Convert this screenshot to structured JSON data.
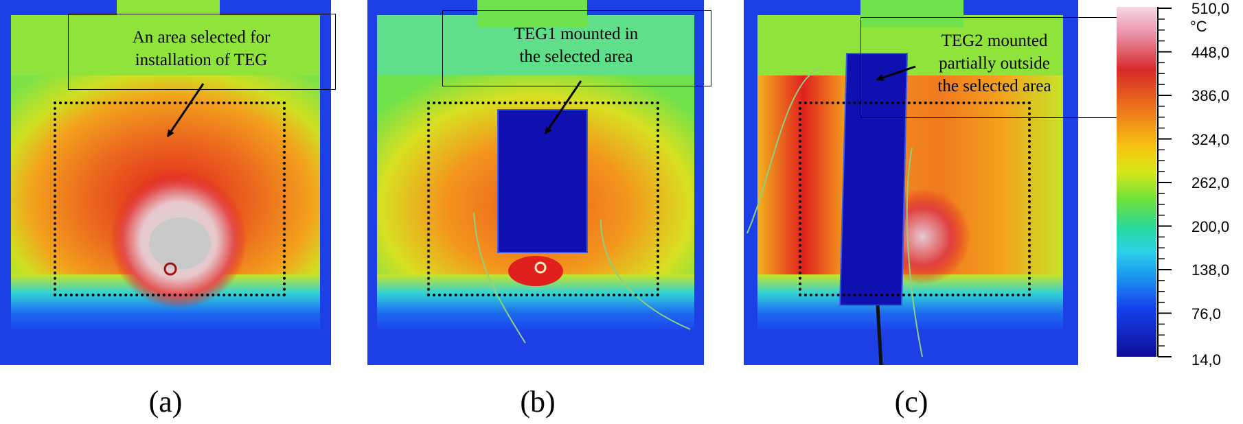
{
  "panels": [
    {
      "caption": "(a)",
      "annotation": [
        "An area selected for",
        "installation of TEG"
      ]
    },
    {
      "caption": "(b)",
      "annotation": [
        "TEG1 mounted in",
        "the selected area"
      ]
    },
    {
      "caption": "(c)",
      "annotation": [
        "TEG2 mounted",
        "partially outside",
        "the selected area"
      ]
    }
  ],
  "colorbar": {
    "unit": "°C",
    "ticks": [
      "510,0",
      "448,0",
      "386,0",
      "324,0",
      "262,0",
      "200,0",
      "138,0",
      "76,0",
      "14,0"
    ]
  },
  "colors": {
    "hot": "#d8d8d8",
    "red": "#e0201e",
    "orange": "#f08a1c",
    "yellow": "#e8d41a",
    "green": "#8fe33a",
    "cyan": "#2fd2d8",
    "blue": "#1d45ef",
    "dark_blue": "#0f0fa0"
  }
}
